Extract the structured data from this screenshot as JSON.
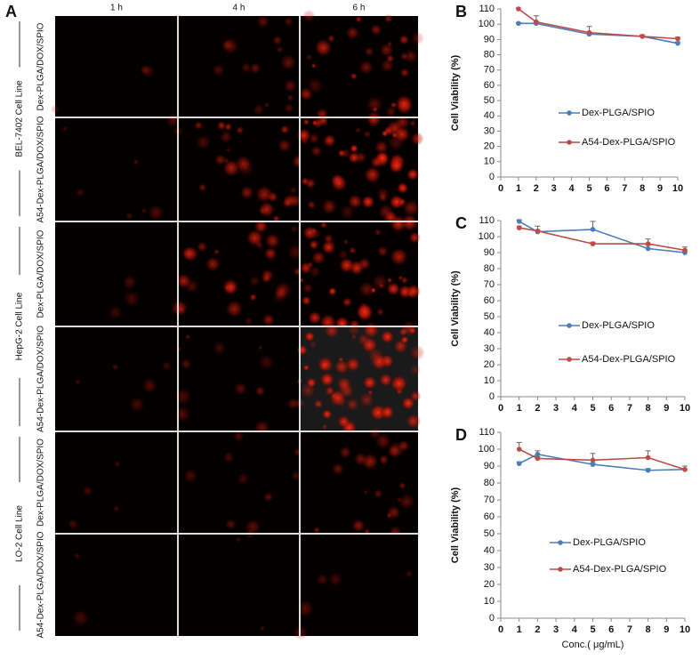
{
  "panel_a": {
    "label": "A",
    "columns": [
      "1 h",
      "4 h",
      "6 h"
    ],
    "groups": [
      {
        "name": "BEL-7402 Cell Line",
        "rows": [
          "Dex-PLGA/DOX/SPIO",
          "A54-Dex-PLGA/DOX/SPIO"
        ]
      },
      {
        "name": "HepG-2 Cell Line",
        "rows": [
          "Dex-PLGA/DOX/SPIO",
          "A54-Dex-PLGA/DOX/SPIO"
        ]
      },
      {
        "name": "LO-2 Cell Line",
        "rows": [
          "Dex-PLGA/DOX/SPIO",
          "A54-Dex-PLGA/DOX/SPIO"
        ]
      }
    ]
  },
  "chart_data": [
    {
      "type": "line",
      "panel_label": "B",
      "ylabel": "Cell Viability (%)",
      "x": [
        1,
        2,
        5,
        8,
        10
      ],
      "xlim": [
        0,
        10
      ],
      "xticks": [
        0,
        1,
        2,
        3,
        4,
        5,
        6,
        7,
        8,
        9,
        10
      ],
      "ylim": [
        0,
        110
      ],
      "yticks": [
        0,
        10,
        20,
        30,
        40,
        50,
        60,
        70,
        80,
        90,
        100,
        110
      ],
      "legend": "center",
      "series": [
        {
          "name": "Dex-PLGA/SPIO",
          "color": "#4a7ebb",
          "values": [
            100.5,
            100.5,
            93.5,
            92,
            87.5
          ],
          "errors": [
            0.5,
            1,
            1,
            1,
            1
          ]
        },
        {
          "name": "A54-Dex-PLGA/SPIO",
          "color": "#be4b48",
          "values": [
            110,
            101.5,
            94.5,
            92,
            90.5
          ],
          "errors": [
            0.5,
            4,
            4,
            1,
            1
          ]
        }
      ]
    },
    {
      "type": "line",
      "panel_label": "C",
      "ylabel": "Cell Viability (%)",
      "x": [
        1,
        2,
        5,
        8,
        10
      ],
      "xlim": [
        0,
        10
      ],
      "xticks": [
        0,
        1,
        2,
        3,
        4,
        5,
        6,
        7,
        8,
        9,
        10
      ],
      "ylim": [
        0,
        110
      ],
      "yticks": [
        0,
        10,
        20,
        30,
        40,
        50,
        60,
        70,
        80,
        90,
        100,
        110
      ],
      "legend": "center",
      "series": [
        {
          "name": "Dex-PLGA/SPIO",
          "color": "#4a7ebb",
          "values": [
            109.5,
            103,
            104.5,
            92.5,
            90
          ],
          "errors": [
            1,
            1,
            5,
            2,
            1
          ]
        },
        {
          "name": "A54-Dex-PLGA/SPIO",
          "color": "#be4b48",
          "values": [
            105.5,
            103.5,
            95.5,
            95.5,
            91.5
          ],
          "errors": [
            1,
            3,
            1,
            3,
            2
          ]
        }
      ]
    },
    {
      "type": "line",
      "panel_label": "D",
      "ylabel": "Cell Viability (%)",
      "xlabel": "Conc.( μg/mL)",
      "x": [
        1,
        2,
        5,
        8,
        10
      ],
      "xlim": [
        0,
        10
      ],
      "xticks": [
        0,
        1,
        2,
        3,
        4,
        5,
        6,
        7,
        8,
        9,
        10
      ],
      "ylim": [
        0,
        110
      ],
      "yticks": [
        0,
        10,
        20,
        30,
        40,
        50,
        60,
        70,
        80,
        90,
        100,
        110
      ],
      "legend": "center",
      "series": [
        {
          "name": "Dex-PLGA/SPIO",
          "color": "#4a7ebb",
          "values": [
            91.5,
            97,
            91,
            87.5,
            88
          ],
          "errors": [
            1,
            2,
            1,
            1,
            2
          ]
        },
        {
          "name": "A54-Dex-PLGA/SPIO",
          "color": "#be4b48",
          "values": [
            100,
            94.5,
            93.5,
            95,
            88
          ],
          "errors": [
            4,
            1,
            4,
            4,
            2
          ]
        }
      ]
    }
  ]
}
